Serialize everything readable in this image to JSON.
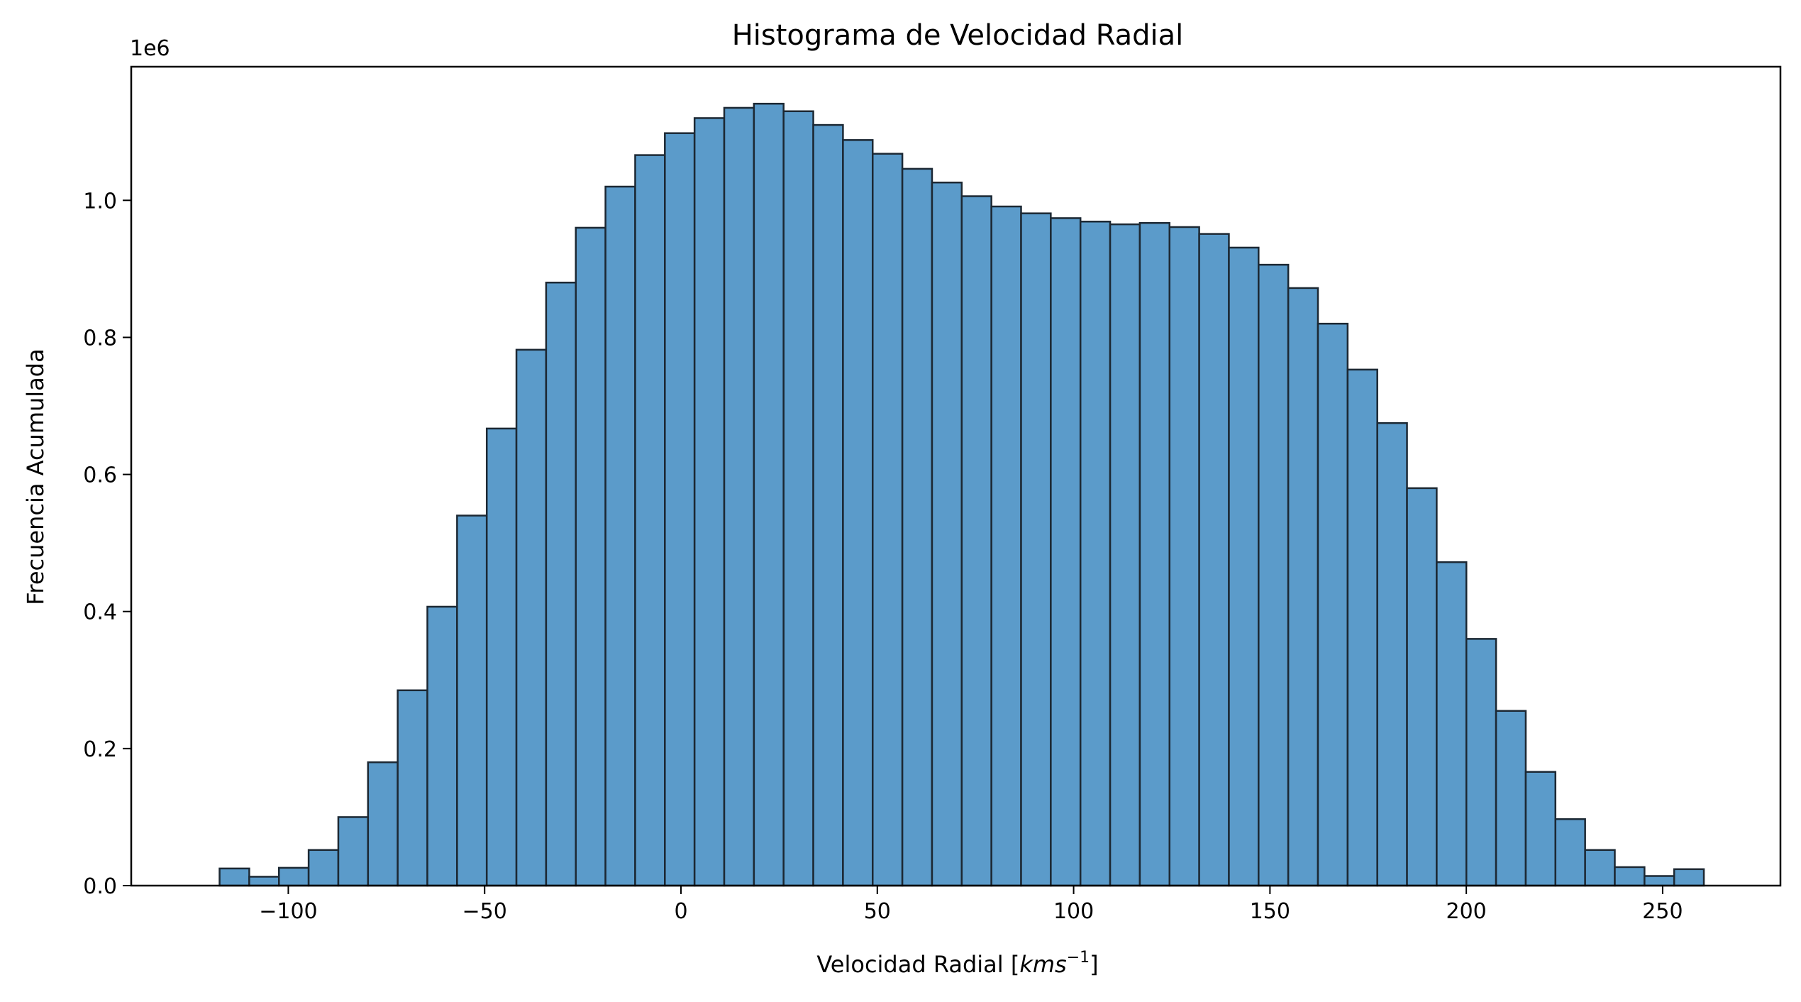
{
  "chart_data": {
    "type": "bar",
    "title": "Histograma de Velocidad Radial",
    "xlabel_prefix": "Velocidad Radial [",
    "xlabel_unit": "kms",
    "xlabel_exp": "−1",
    "xlabel_suffix": "]",
    "ylabel": "Frecuencia Acumulada",
    "y_offset_label": "1e6",
    "xlim": [
      -140,
      280
    ],
    "ylim": [
      0,
      1.195
    ],
    "xticks": [
      -100,
      -50,
      0,
      50,
      100,
      150,
      200,
      250
    ],
    "xtick_labels": [
      "−100",
      "−50",
      "0",
      "50",
      "100",
      "150",
      "200",
      "250"
    ],
    "yticks": [
      0.0,
      0.2,
      0.4,
      0.6,
      0.8,
      1.0
    ],
    "ytick_labels": [
      "0.0",
      "0.2",
      "0.4",
      "0.6",
      "0.8",
      "1.0"
    ],
    "bin_start": -117.5,
    "bin_end": 260.5,
    "values": [
      0.025,
      0.013,
      0.026,
      0.052,
      0.1,
      0.18,
      0.285,
      0.407,
      0.54,
      0.667,
      0.782,
      0.88,
      0.96,
      1.02,
      1.066,
      1.098,
      1.12,
      1.135,
      1.141,
      1.13,
      1.11,
      1.088,
      1.068,
      1.046,
      1.026,
      1.006,
      0.991,
      0.981,
      0.974,
      0.969,
      0.965,
      0.967,
      0.961,
      0.951,
      0.931,
      0.906,
      0.872,
      0.82,
      0.753,
      0.675,
      0.58,
      0.472,
      0.36,
      0.255,
      0.166,
      0.097,
      0.052,
      0.027,
      0.014,
      0.024
    ],
    "colors": {
      "bar_fill": "#5b9bca",
      "bar_edge": "#1c2833"
    }
  }
}
